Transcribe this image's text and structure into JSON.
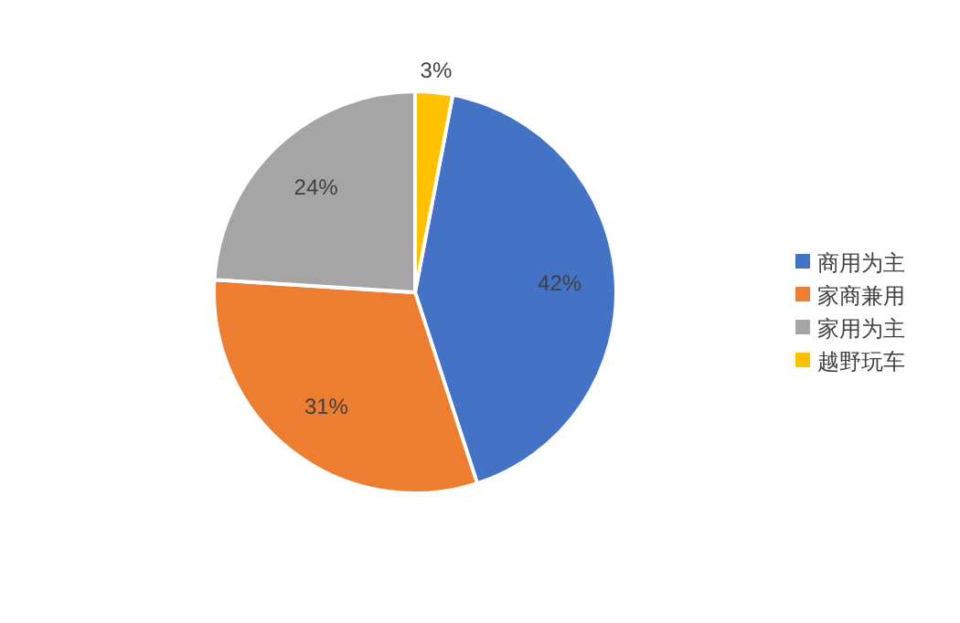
{
  "chart_data": {
    "type": "pie",
    "categories": [
      "商用为主",
      "家商兼用",
      "家用为主",
      "越野玩车"
    ],
    "values": [
      42,
      31,
      24,
      3
    ],
    "colors": [
      "#4472c4",
      "#ed7d31",
      "#a5a5a5",
      "#ffc000"
    ],
    "value_labels": [
      "42%",
      "31%",
      "24%",
      "3%"
    ],
    "legend": "right"
  }
}
